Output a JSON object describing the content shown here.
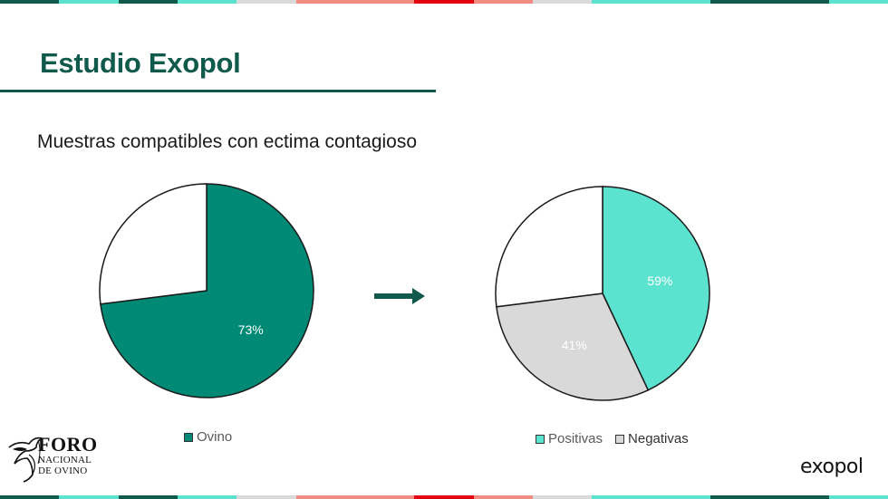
{
  "slide": {
    "title": "Estudio Exopol",
    "subtitle": "Muestras compatibles con ectima contagioso"
  },
  "colors": {
    "accent": "#0f5a4a",
    "ovino": "#008a75",
    "positivas": "#5be3d0",
    "negativas": "#d9d9d9",
    "other": "#ffffff",
    "bar": [
      "#0f5a4a",
      "#5be3d0",
      "#0f5a4a",
      "#5be3d0",
      "#d9d9d9",
      "#f28b82",
      "#f28b82",
      "#e3000f",
      "#f28b82",
      "#d9d9d9",
      "#5be3d0",
      "#5be3d0",
      "#0f5a4a",
      "#0f5a4a",
      "#5be3d0"
    ]
  },
  "logos": {
    "foro_line1": "FORO",
    "foro_line2": "NACIONAL",
    "foro_line3": "DE OVINO",
    "exopol": "exopol"
  },
  "icons": {
    "arrow": "arrow-right-icon"
  },
  "chart_data": [
    {
      "type": "pie",
      "slices": [
        {
          "name": "Ovino",
          "value": 73,
          "label": "73%",
          "color": "#008a75"
        },
        {
          "name": "",
          "value": 27,
          "label": "",
          "color": "#ffffff"
        }
      ],
      "legend": [
        "Ovino"
      ],
      "legend_position": "bottom"
    },
    {
      "type": "pie",
      "slices": [
        {
          "name": "Positivas",
          "value": 43,
          "label": "59%",
          "color": "#5be3d0"
        },
        {
          "name": "Negativas",
          "value": 30,
          "label": "41%",
          "color": "#d9d9d9"
        },
        {
          "name": "",
          "value": 27,
          "label": "",
          "color": "#ffffff"
        }
      ],
      "legend": [
        "Positivas",
        "Negativas"
      ],
      "legend_position": "bottom"
    }
  ]
}
